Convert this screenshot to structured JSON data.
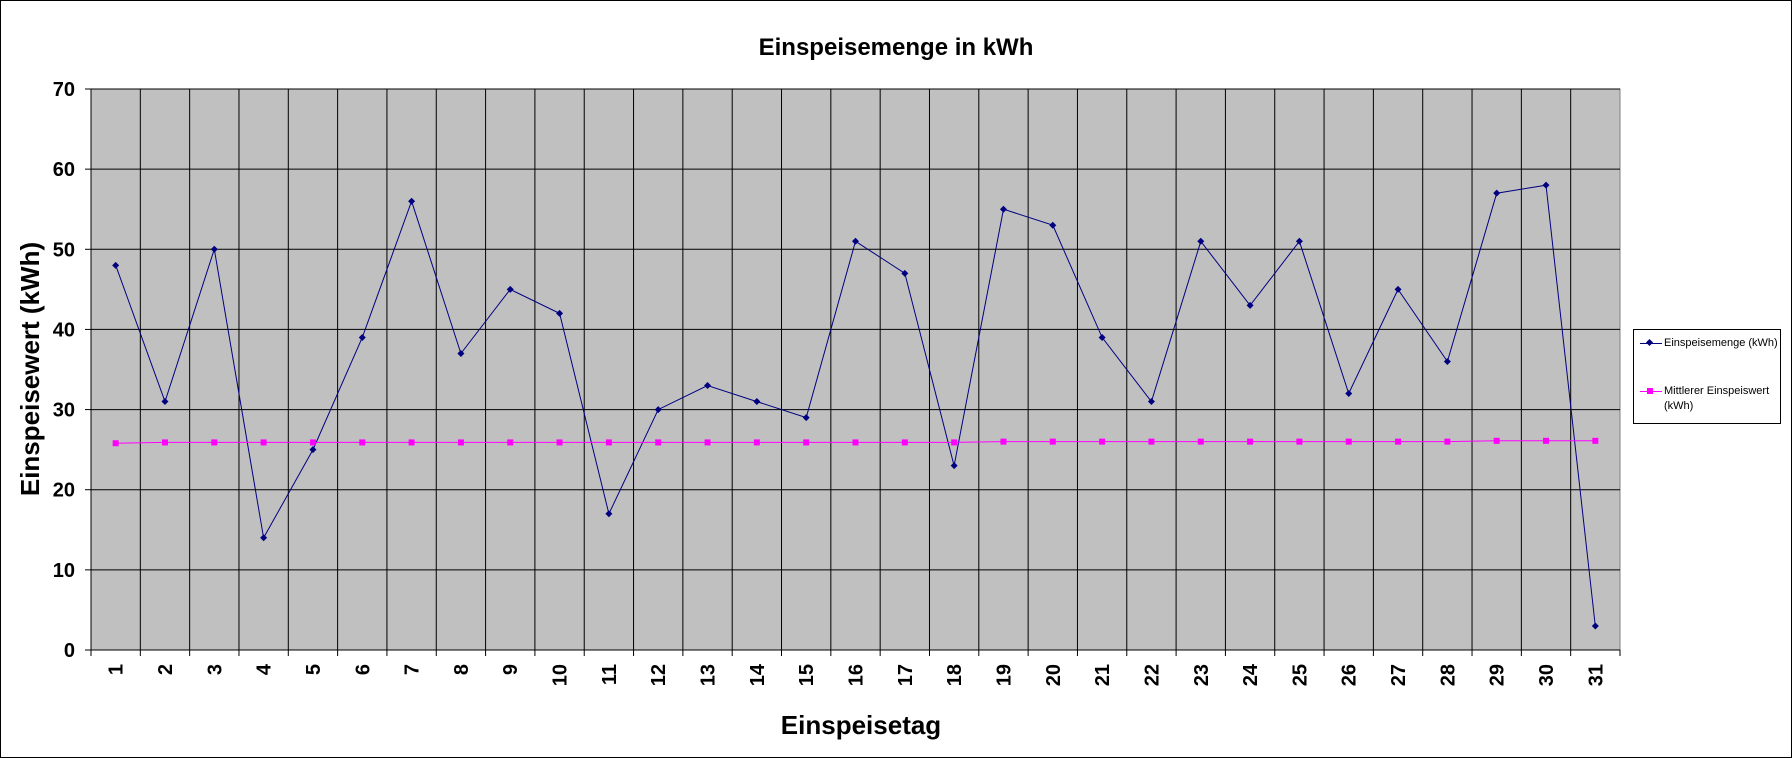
{
  "chart_data": {
    "type": "line",
    "title": "Einspeisemenge in kWh",
    "xlabel": "Einspeisetag",
    "ylabel": "Einspeisewert  (kWh)",
    "categories": [
      "1",
      "2",
      "3",
      "4",
      "5",
      "6",
      "7",
      "8",
      "9",
      "10",
      "11",
      "12",
      "13",
      "14",
      "15",
      "16",
      "17",
      "18",
      "19",
      "20",
      "21",
      "22",
      "23",
      "24",
      "25",
      "26",
      "27",
      "28",
      "29",
      "30",
      "31"
    ],
    "ylim": [
      0,
      70
    ],
    "yticks": [
      "0",
      "10",
      "20",
      "30",
      "40",
      "50",
      "60",
      "70"
    ],
    "grid": true,
    "legend_position": "right",
    "background_color": "#c0c0c0",
    "series": [
      {
        "name": "Einspeisemenge (kWh)",
        "color": "#000080",
        "marker": "diamond",
        "values": [
          48,
          31,
          50,
          14,
          25,
          39,
          56,
          37,
          45,
          42,
          17,
          30,
          33,
          31,
          29,
          51,
          47,
          23,
          55,
          53,
          39,
          31,
          51,
          43,
          51,
          32,
          45,
          36,
          57,
          58,
          3
        ]
      },
      {
        "name": "Mittlerer Einspeiswert (kWh)",
        "color": "#ff00ff",
        "marker": "square",
        "values": [
          25.8,
          25.9,
          25.9,
          25.9,
          25.9,
          25.9,
          25.9,
          25.9,
          25.9,
          25.9,
          25.9,
          25.9,
          25.9,
          25.9,
          25.9,
          25.9,
          25.9,
          25.9,
          26.0,
          26.0,
          26.0,
          26.0,
          26.0,
          26.0,
          26.0,
          26.0,
          26.0,
          26.0,
          26.1,
          26.1,
          26.1
        ]
      }
    ]
  }
}
